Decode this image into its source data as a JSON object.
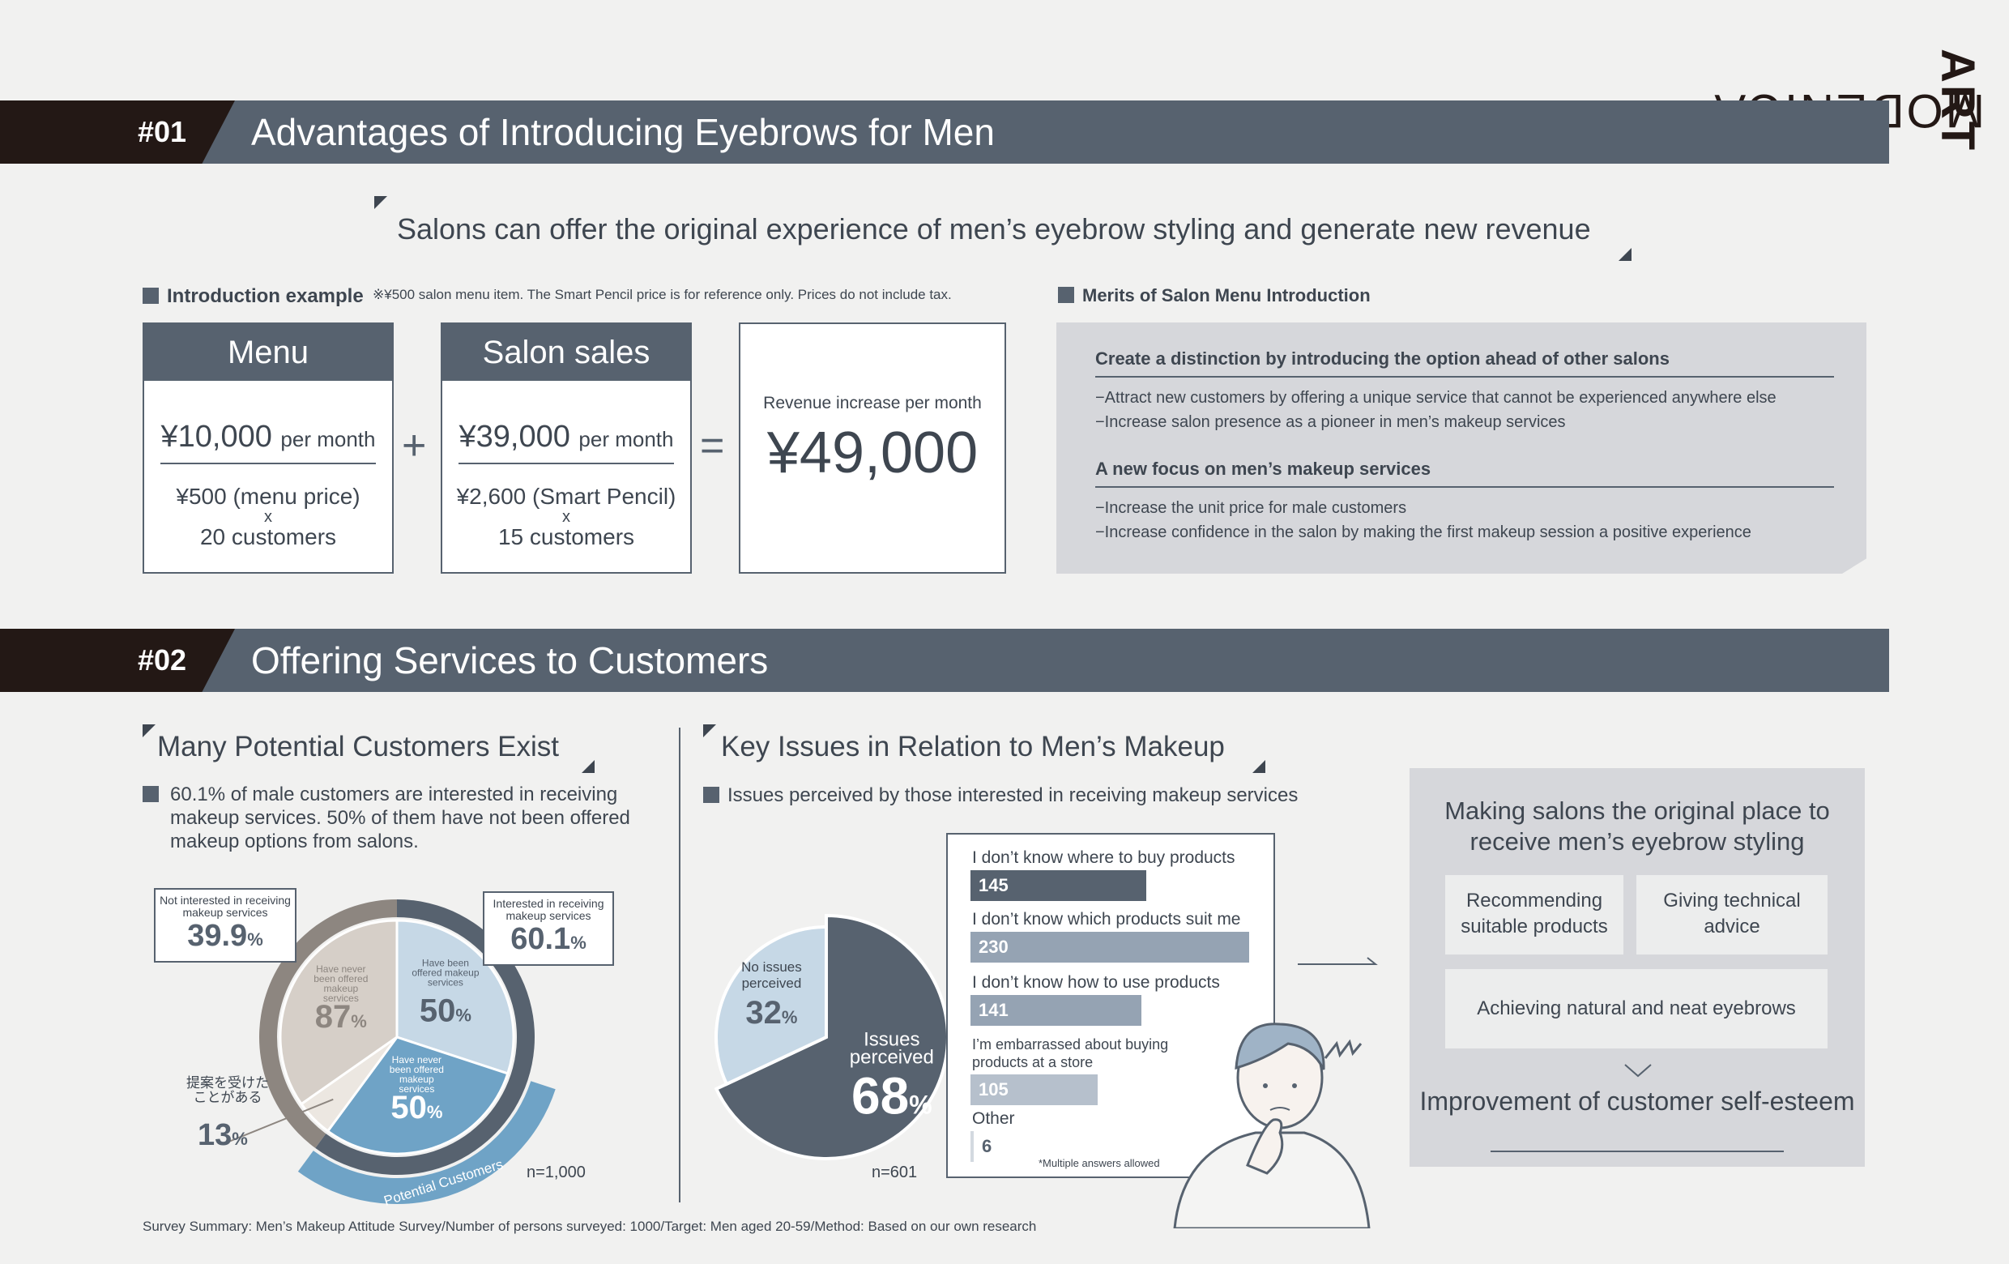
{
  "brand": {
    "part1": "MODENICA ",
    "part2": "ART"
  },
  "section1": {
    "number": "#01",
    "title": "Advantages of Introducing Eyebrows for Men",
    "tagline": "Salons can offer the original experience of men’s eyebrow styling and generate new revenue",
    "intro_label": "Introduction example",
    "intro_note": "※¥500 salon menu item. The Smart Pencil price is for reference only. Prices do not include tax.",
    "menu": {
      "header": "Menu",
      "price": "¥10,000",
      "unit": "per month",
      "line1": "¥500 (menu price)",
      "x": "x",
      "line2": "20 customers"
    },
    "plus": "+",
    "sales": {
      "header": "Salon sales",
      "price": "¥39,000",
      "unit": "per month",
      "line1": "¥2,600 (Smart Pencil)",
      "x": "x",
      "line2": "15 customers"
    },
    "equals": "=",
    "revenue": {
      "label": "Revenue increase per month",
      "value": "¥49,000"
    },
    "merits_label": "Merits of Salon Menu Introduction",
    "merits": [
      {
        "heading": "Create a distinction by introducing the option ahead of other salons",
        "lines": [
          "−Attract new customers by offering a unique service that cannot be experienced anywhere else",
          "−Increase salon presence as a pioneer in men’s makeup services"
        ]
      },
      {
        "heading": "A new focus on men’s makeup services",
        "lines": [
          "−Increase the unit price for male customers",
          "−Increase confidence in the salon by making the first makeup session a positive experience"
        ]
      }
    ]
  },
  "section2": {
    "number": "#02",
    "title": "Offering Services to Customers",
    "left_heading": "Many Potential Customers Exist",
    "left_intro": "60.1% of male customers are interested in receiving makeup services. 50% of them have not been offered makeup options from salons.",
    "mid_heading": "Key Issues in Relation to Men’s Makeup",
    "mid_intro": "Issues perceived by those interested in receiving makeup services",
    "footer": "Survey Summary: Men’s Makeup Attitude Survey/Number of persons surveyed: 1000/Target: Men aged 20-59/Method: Based on our own research"
  },
  "chart_data": [
    {
      "type": "pie",
      "title": "",
      "n_label": "n=1,000",
      "outer_ring": [
        {
          "label": "Not interested in receiving makeup services",
          "value": 39.9,
          "display": "39.9",
          "unit": "%",
          "color": "#8d8680"
        },
        {
          "label": "Interested in receiving makeup services",
          "value": 60.1,
          "display": "60.1",
          "unit": "%",
          "color": "#57626f"
        }
      ],
      "inner_slices": [
        {
          "label": "Have never been offered makeup services",
          "value": 87,
          "unit": "%",
          "color": "#d6cfc8",
          "group": "not interested"
        },
        {
          "label": "提案を受けたことがある",
          "value": 13,
          "unit": "%",
          "color": "#ece7e1",
          "group": "not interested"
        },
        {
          "label": "Have been offered makeup services",
          "value": 50,
          "unit": "%",
          "color": "#c6d8e6",
          "group": "interested"
        },
        {
          "label": "Have never been offered makeup services",
          "value": 50,
          "unit": "%",
          "color": "#6fa3c6",
          "group": "interested"
        }
      ],
      "arc_label": "Potential Customers"
    },
    {
      "type": "pie",
      "title": "",
      "n_label": "n=601",
      "slices": [
        {
          "label": "Issues perceived",
          "value": 68,
          "unit": "%",
          "color": "#57626f"
        },
        {
          "label": "No issues perceived",
          "value": 32,
          "unit": "%",
          "color": "#c6d8e6"
        }
      ]
    },
    {
      "type": "bar",
      "title": "",
      "orientation": "horizontal",
      "categories": [
        "I don’t know where to buy products",
        "I don’t know which products suit me",
        "I don’t know how to use products",
        "I’m embarrassed about buying products at a store",
        "Other"
      ],
      "values": [
        145,
        230,
        141,
        105,
        6
      ],
      "colors": [
        "#57626f",
        "#95a3b3",
        "#95a3b3",
        "#b6c0cc",
        "#d3d9e0"
      ],
      "annotation": "*Multiple answers allowed"
    }
  ],
  "panel": {
    "title": "Making salons the original place to receive men’s eyebrow styling",
    "cells": [
      "Recommending suitable products",
      "Giving technical advice",
      "Achieving natural and neat eyebrows"
    ],
    "result": "Improvement of customer self-esteem"
  }
}
